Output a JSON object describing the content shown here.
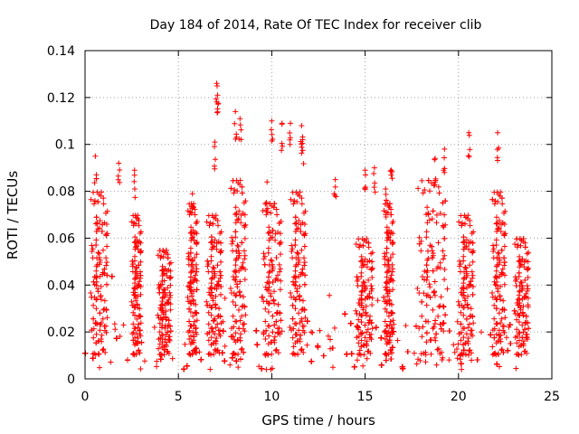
{
  "chart_data": {
    "type": "scatter",
    "title": "Day 184 of 2014, Rate Of TEC Index for receiver clib",
    "xlabel": "GPS time / hours",
    "ylabel": "ROTI / TECUs",
    "xlim": [
      0,
      25
    ],
    "ylim": [
      0,
      0.14
    ],
    "xticks": [
      0,
      5,
      10,
      15,
      20,
      25
    ],
    "yticks": [
      0,
      0.02,
      0.04,
      0.06,
      0.08,
      0.1,
      0.12,
      0.14
    ],
    "xtick_labels": [
      "0",
      "5",
      "10",
      "15",
      "20",
      "25"
    ],
    "ytick_labels": [
      "0",
      "0.02",
      "0.04",
      "0.06",
      "0.08",
      "0.1",
      "0.12",
      "0.14"
    ],
    "grid": true,
    "marker": "+",
    "series": [
      {
        "name": "ROTI",
        "color": "#ff0000",
        "x_range": [
          0,
          23.75
        ],
        "peaks": [
          {
            "x": 7.05,
            "y": 0.126
          },
          {
            "x": 7.1,
            "y": 0.121
          },
          {
            "x": 8.05,
            "y": 0.114
          },
          {
            "x": 8.3,
            "y": 0.111
          },
          {
            "x": 10.0,
            "y": 0.11
          },
          {
            "x": 10.55,
            "y": 0.109
          },
          {
            "x": 11.0,
            "y": 0.109
          },
          {
            "x": 11.6,
            "y": 0.108
          },
          {
            "x": 20.55,
            "y": 0.105
          },
          {
            "x": 22.1,
            "y": 0.105
          },
          {
            "x": 6.95,
            "y": 0.101
          },
          {
            "x": 11.65,
            "y": 0.102
          },
          {
            "x": 0.55,
            "y": 0.095
          },
          {
            "x": 19.25,
            "y": 0.098
          },
          {
            "x": 1.8,
            "y": 0.092
          },
          {
            "x": 2.65,
            "y": 0.089
          },
          {
            "x": 15.0,
            "y": 0.089
          },
          {
            "x": 15.5,
            "y": 0.09
          },
          {
            "x": 16.4,
            "y": 0.089
          },
          {
            "x": 18.75,
            "y": 0.094
          },
          {
            "x": 13.4,
            "y": 0.085
          },
          {
            "x": 9.75,
            "y": 0.084
          },
          {
            "x": 5.75,
            "y": 0.079
          },
          {
            "x": 16.1,
            "y": 0.081
          }
        ],
        "busy_intervals": [
          {
            "from": 0.3,
            "to": 1.2,
            "max": 0.08
          },
          {
            "from": 2.5,
            "to": 3.0,
            "max": 0.07
          },
          {
            "from": 3.9,
            "to": 4.6,
            "max": 0.055
          },
          {
            "from": 5.5,
            "to": 6.0,
            "max": 0.075
          },
          {
            "from": 6.5,
            "to": 7.3,
            "max": 0.07
          },
          {
            "from": 7.8,
            "to": 8.6,
            "max": 0.085
          },
          {
            "from": 9.5,
            "to": 10.5,
            "max": 0.075
          },
          {
            "from": 11.0,
            "to": 11.8,
            "max": 0.08
          },
          {
            "from": 14.5,
            "to": 15.4,
            "max": 0.06
          },
          {
            "from": 16.0,
            "to": 16.5,
            "max": 0.075
          },
          {
            "from": 17.8,
            "to": 19.3,
            "max": 0.085
          },
          {
            "from": 20.0,
            "to": 20.8,
            "max": 0.07
          },
          {
            "from": 21.8,
            "to": 22.5,
            "max": 0.08
          },
          {
            "from": 23.0,
            "to": 23.75,
            "max": 0.06
          }
        ],
        "baseline": [
          0.004,
          0.025
        ]
      }
    ]
  }
}
